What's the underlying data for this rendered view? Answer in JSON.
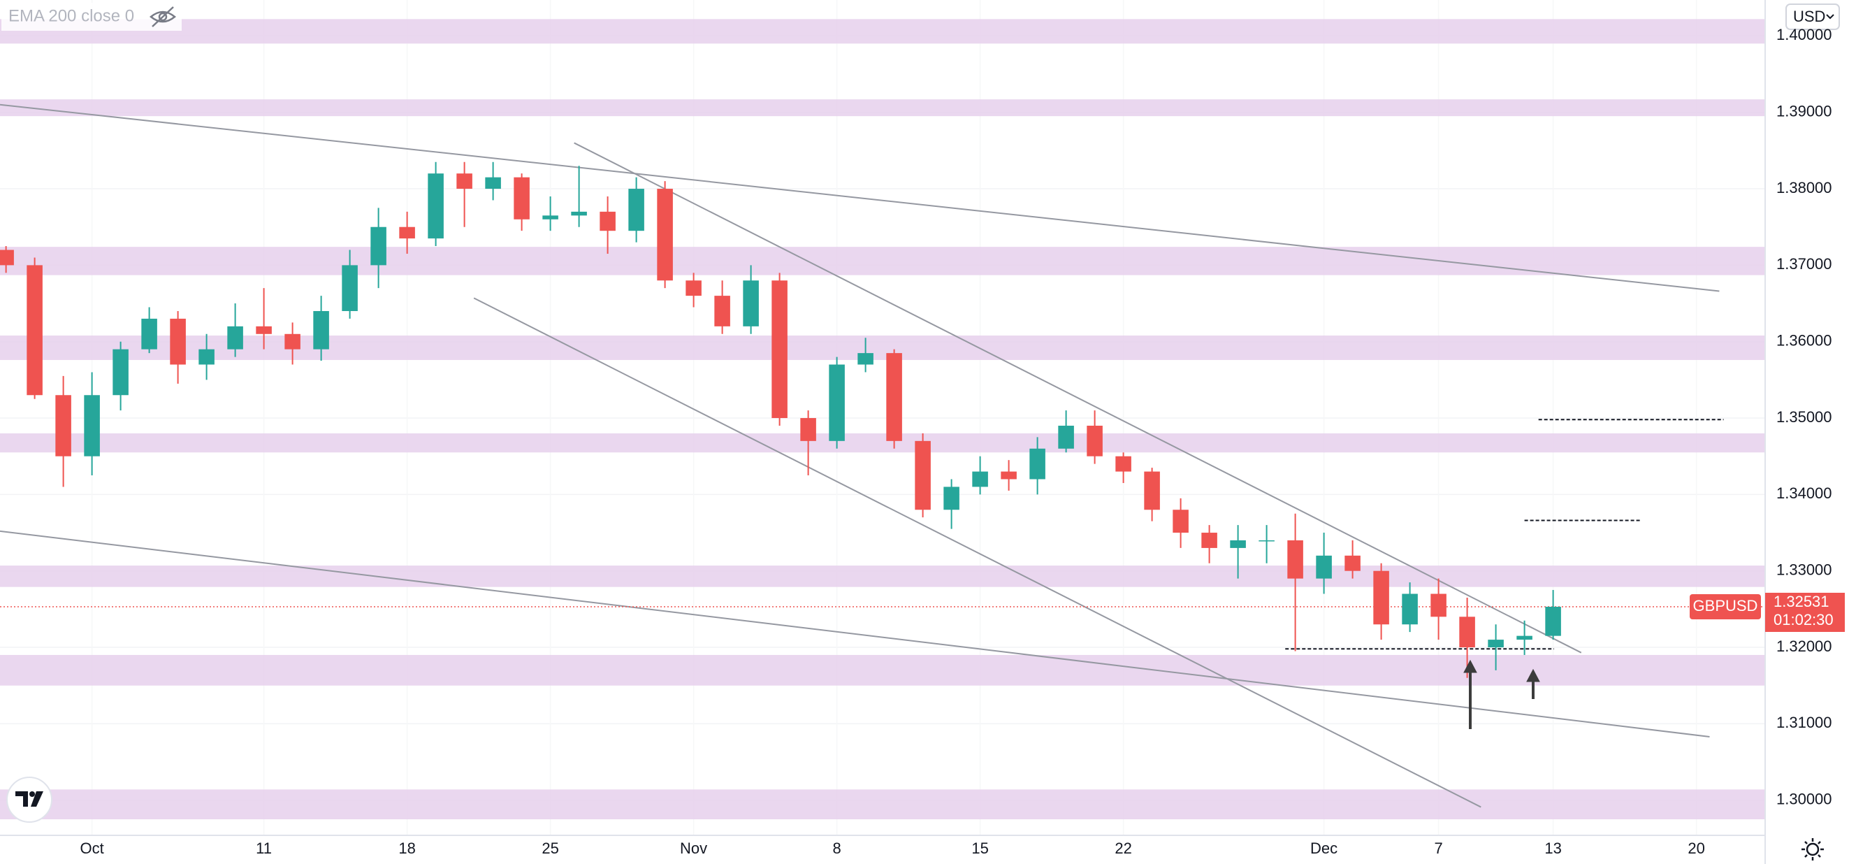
{
  "chart_data": {
    "type": "candlestick",
    "indicator": "EMA 200 close 0",
    "currency": "USD",
    "symbol": "GBPUSD",
    "last_price": 1.32531,
    "countdown": "01:02:30",
    "up_color": "#26a69a",
    "down_color": "#ef5350",
    "grid": true,
    "xlim": [
      -3.21,
      58.4
    ],
    "ylim": [
      1.2954,
      1.4047
    ],
    "xticks": [
      {
        "value": 0,
        "label": "Oct"
      },
      {
        "value": 6,
        "label": "11"
      },
      {
        "value": 11,
        "label": "18"
      },
      {
        "value": 16,
        "label": "25"
      },
      {
        "value": 21,
        "label": "Nov"
      },
      {
        "value": 26,
        "label": "8"
      },
      {
        "value": 31,
        "label": "15"
      },
      {
        "value": 36,
        "label": "22"
      },
      {
        "value": 43,
        "label": "Dec"
      },
      {
        "value": 47,
        "label": "7"
      },
      {
        "value": 51,
        "label": "13"
      },
      {
        "value": 56,
        "label": "20"
      }
    ],
    "yticks": [
      {
        "value": 1.3,
        "label": "1.30000"
      },
      {
        "value": 1.31,
        "label": "1.31000"
      },
      {
        "value": 1.32,
        "label": "1.32000"
      },
      {
        "value": 1.33,
        "label": "1.33000"
      },
      {
        "value": 1.34,
        "label": "1.34000"
      },
      {
        "value": 1.35,
        "label": "1.35000"
      },
      {
        "value": 1.36,
        "label": "1.36000"
      },
      {
        "value": 1.37,
        "label": "1.37000"
      },
      {
        "value": 1.38,
        "label": "1.38000"
      },
      {
        "value": 1.39,
        "label": "1.39000"
      },
      {
        "value": 1.4,
        "label": "1.40000"
      }
    ],
    "x": [
      -3,
      -2,
      -1,
      0,
      1,
      2,
      3,
      4,
      5,
      6,
      7,
      8,
      9,
      10,
      11,
      12,
      13,
      14,
      15,
      16,
      17,
      18,
      19,
      20,
      21,
      22,
      23,
      24,
      25,
      26,
      27,
      28,
      29,
      30,
      31,
      32,
      33,
      34,
      35,
      36,
      37,
      38,
      39,
      40,
      41,
      42,
      43,
      44,
      45,
      46,
      47,
      48,
      49,
      50,
      51
    ],
    "open": [
      1.372,
      1.37,
      1.353,
      1.345,
      1.353,
      1.359,
      1.363,
      1.357,
      1.359,
      1.362,
      1.361,
      1.359,
      1.364,
      1.37,
      1.375,
      1.3735,
      1.382,
      1.38,
      1.3815,
      1.376,
      1.3765,
      1.377,
      1.3745,
      1.38,
      1.368,
      1.366,
      1.362,
      1.368,
      1.35,
      1.347,
      1.357,
      1.3585,
      1.347,
      1.338,
      1.341,
      1.343,
      1.342,
      1.346,
      1.349,
      1.345,
      1.343,
      1.338,
      1.335,
      1.333,
      1.334,
      1.334,
      1.329,
      1.332,
      1.33,
      1.323,
      1.327,
      1.324,
      1.32,
      1.321,
      1.3215
    ],
    "high": [
      1.3725,
      1.371,
      1.3555,
      1.356,
      1.36,
      1.3645,
      1.364,
      1.361,
      1.365,
      1.367,
      1.3625,
      1.366,
      1.372,
      1.3775,
      1.377,
      1.3835,
      1.3835,
      1.3835,
      1.382,
      1.379,
      1.383,
      1.379,
      1.3815,
      1.381,
      1.369,
      1.368,
      1.37,
      1.369,
      1.351,
      1.358,
      1.3605,
      1.359,
      1.348,
      1.342,
      1.345,
      1.3445,
      1.3475,
      1.351,
      1.351,
      1.3455,
      1.3435,
      1.3395,
      1.336,
      1.336,
      1.336,
      1.3375,
      1.335,
      1.334,
      1.331,
      1.3285,
      1.329,
      1.3265,
      1.323,
      1.3235,
      1.3275
    ],
    "low": [
      1.369,
      1.3525,
      1.341,
      1.3425,
      1.351,
      1.3585,
      1.3545,
      1.355,
      1.358,
      1.359,
      1.357,
      1.3575,
      1.363,
      1.367,
      1.3715,
      1.3725,
      1.375,
      1.3785,
      1.3745,
      1.3745,
      1.375,
      1.3715,
      1.373,
      1.367,
      1.3645,
      1.361,
      1.361,
      1.349,
      1.3425,
      1.346,
      1.356,
      1.346,
      1.337,
      1.3355,
      1.34,
      1.3405,
      1.34,
      1.3455,
      1.344,
      1.3415,
      1.3365,
      1.333,
      1.331,
      1.329,
      1.331,
      1.3195,
      1.327,
      1.329,
      1.321,
      1.322,
      1.321,
      1.316,
      1.317,
      1.319,
      1.321
    ],
    "close": [
      1.37,
      1.353,
      1.345,
      1.353,
      1.359,
      1.363,
      1.357,
      1.359,
      1.362,
      1.361,
      1.359,
      1.364,
      1.37,
      1.375,
      1.3735,
      1.382,
      1.38,
      1.3815,
      1.376,
      1.3765,
      1.377,
      1.3745,
      1.38,
      1.368,
      1.366,
      1.362,
      1.368,
      1.35,
      1.347,
      1.357,
      1.3585,
      1.347,
      1.338,
      1.341,
      1.343,
      1.342,
      1.346,
      1.349,
      1.345,
      1.343,
      1.338,
      1.335,
      1.333,
      1.334,
      1.334,
      1.329,
      1.332,
      1.33,
      1.323,
      1.327,
      1.324,
      1.32,
      1.321,
      1.3215,
      1.32531
    ],
    "zone_color": "#e6d0ec",
    "zones": [
      [
        1.399,
        1.4022
      ],
      [
        1.3895,
        1.3917
      ],
      [
        1.3687,
        1.3724
      ],
      [
        1.3576,
        1.3608
      ],
      [
        1.3455,
        1.348
      ],
      [
        1.3279,
        1.3307
      ],
      [
        1.315,
        1.319
      ],
      [
        1.2975,
        1.3014
      ]
    ],
    "trendlines": [
      {
        "x": [
          -3.21,
          56.8
        ],
        "y": [
          1.391,
          1.3666
        ]
      },
      {
        "x": [
          16.83,
          51.98
        ],
        "y": [
          1.386,
          1.3193
        ]
      },
      {
        "x": [
          13.33,
          48.48
        ],
        "y": [
          1.3657,
          1.2991
        ]
      },
      {
        "x": [
          -3.21,
          56.46
        ],
        "y": [
          1.3352,
          1.3083
        ]
      }
    ],
    "levels": [
      {
        "x": [
          41.65,
          51.03
        ],
        "y": 1.3198
      },
      {
        "x": [
          50.49,
          56.95
        ],
        "y": 1.3498
      },
      {
        "x": [
          50.0,
          54.07
        ],
        "y": 1.3366
      }
    ]
  }
}
